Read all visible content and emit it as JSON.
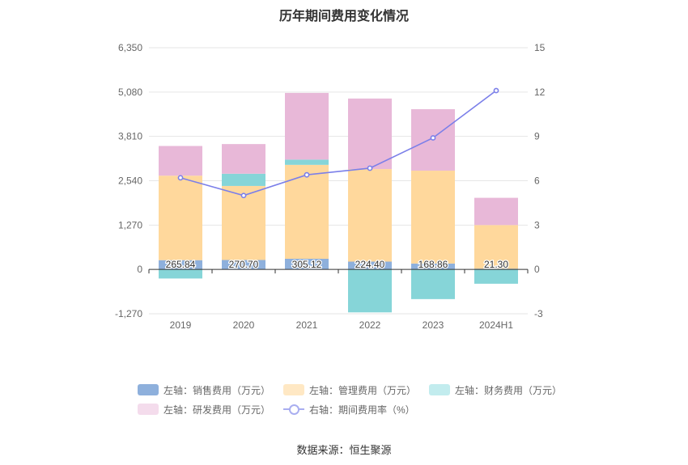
{
  "chart_data": {
    "type": "bar",
    "title": "历年期间费用变化情况",
    "categories": [
      "2019",
      "2020",
      "2021",
      "2022",
      "2023",
      "2024H1"
    ],
    "left_axis": {
      "ylim": [
        -1270,
        6350
      ],
      "ticks": [
        "-1,270",
        "0",
        "1,270",
        "2,540",
        "3,810",
        "5,080",
        "6,350"
      ],
      "tick_values": [
        -1270,
        0,
        1270,
        2540,
        3810,
        5080,
        6350
      ]
    },
    "right_axis": {
      "ylim": [
        -3,
        15
      ],
      "ticks": [
        "-3",
        "0",
        "3",
        "6",
        "9",
        "12",
        "15"
      ],
      "tick_values": [
        -3,
        0,
        3,
        6,
        9,
        12,
        15
      ]
    },
    "series": [
      {
        "name": "左轴：销售费用（万元）",
        "axis": "left",
        "color": "#8eb0dc",
        "values": [
          265.84,
          270.7,
          305.12,
          224.4,
          168.86,
          21.3
        ],
        "labels": [
          "265.84",
          "270.70",
          "305.12",
          "224.40",
          "168.86",
          "21.30"
        ]
      },
      {
        "name": "左轴：管理费用（万元）",
        "axis": "left",
        "color": "#ffd89c",
        "values": [
          2420,
          2120,
          2690,
          2650,
          2660,
          1250
        ]
      },
      {
        "name": "左轴：财务费用（万元）",
        "axis": "left",
        "color": "#86d5d8",
        "values": [
          -260,
          350,
          150,
          -1230,
          -850,
          -410
        ]
      },
      {
        "name": "左轴：研发费用（万元）",
        "axis": "left",
        "color": "#e8b8d8",
        "values": [
          850,
          850,
          1910,
          2020,
          1760,
          780
        ]
      },
      {
        "name": "右轴：期间费用率（%）",
        "axis": "right",
        "type": "line",
        "color": "#7b7fe9",
        "values": [
          6.2,
          5.0,
          6.4,
          6.85,
          8.9,
          12.1
        ]
      }
    ],
    "legend": [
      {
        "label": "左轴：销售费用（万元）",
        "color": "#8eb0dc"
      },
      {
        "label": "左轴：管理费用（万元）",
        "color": "#ffe8c4"
      },
      {
        "label": "左轴：财务费用（万元）",
        "color": "#c2ecee"
      },
      {
        "label": "左轴：研发费用（万元）",
        "color": "#f4dcec"
      },
      {
        "label": "右轴：期间费用率（%）",
        "color": "#a9aef0"
      }
    ],
    "source": "数据来源：恒生聚源"
  }
}
